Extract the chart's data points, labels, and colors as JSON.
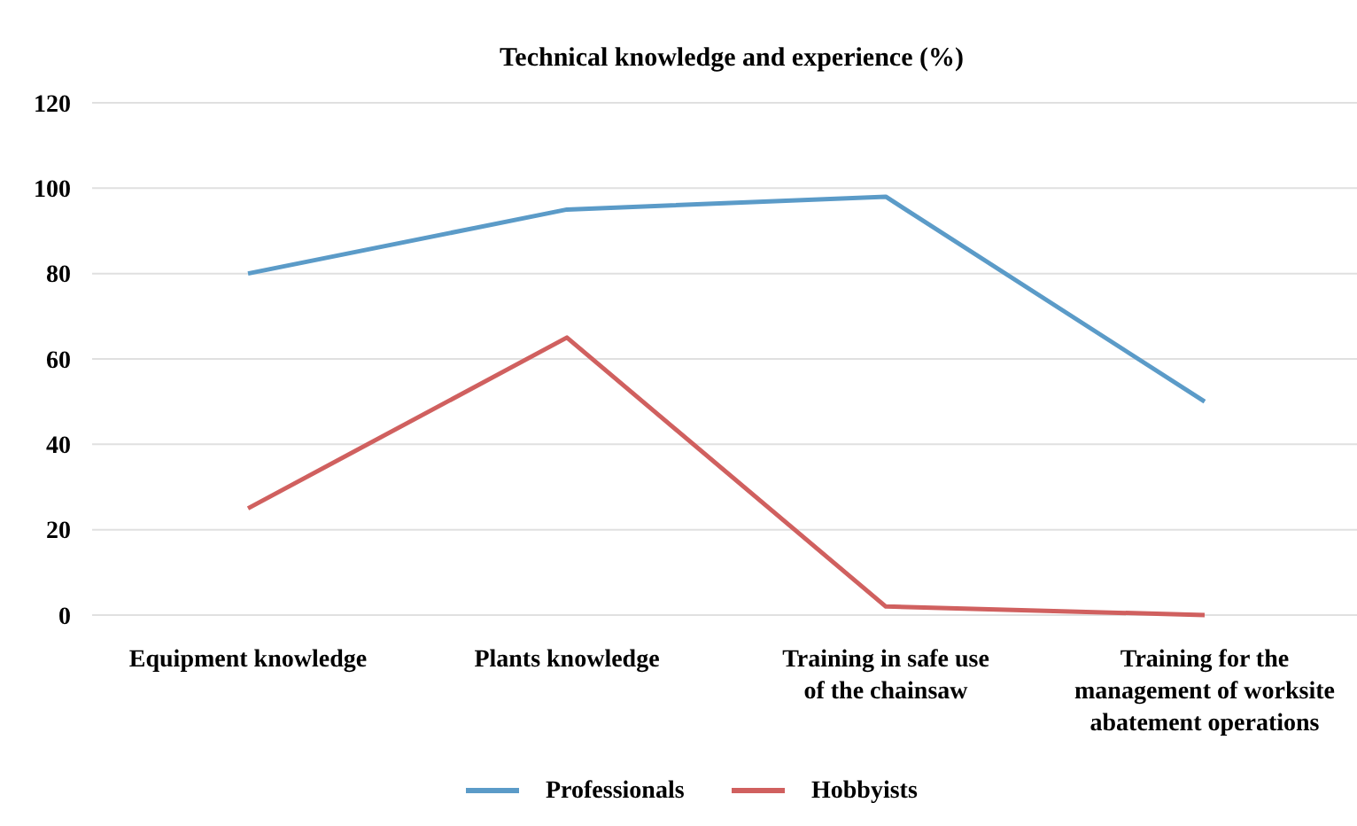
{
  "chart_data": {
    "type": "line",
    "title": "Technical knowledge and experience (%)",
    "categories": [
      "Equipment knowledge",
      "Plants knowledge",
      "Training in safe use of the chainsaw",
      "Training for the management of worksite abatement operations"
    ],
    "series": [
      {
        "name": "Professionals",
        "color": "#5b9bc8",
        "values": [
          80,
          95,
          98,
          50
        ]
      },
      {
        "name": "Hobbyists",
        "color": "#d0605f",
        "values": [
          25,
          65,
          2,
          0
        ]
      }
    ],
    "ylim": [
      0,
      120
    ],
    "yticks": [
      0,
      20,
      40,
      60,
      80,
      100,
      120
    ],
    "grid": "y",
    "legend": "bottom",
    "marker": "none",
    "line_style": "solid"
  }
}
